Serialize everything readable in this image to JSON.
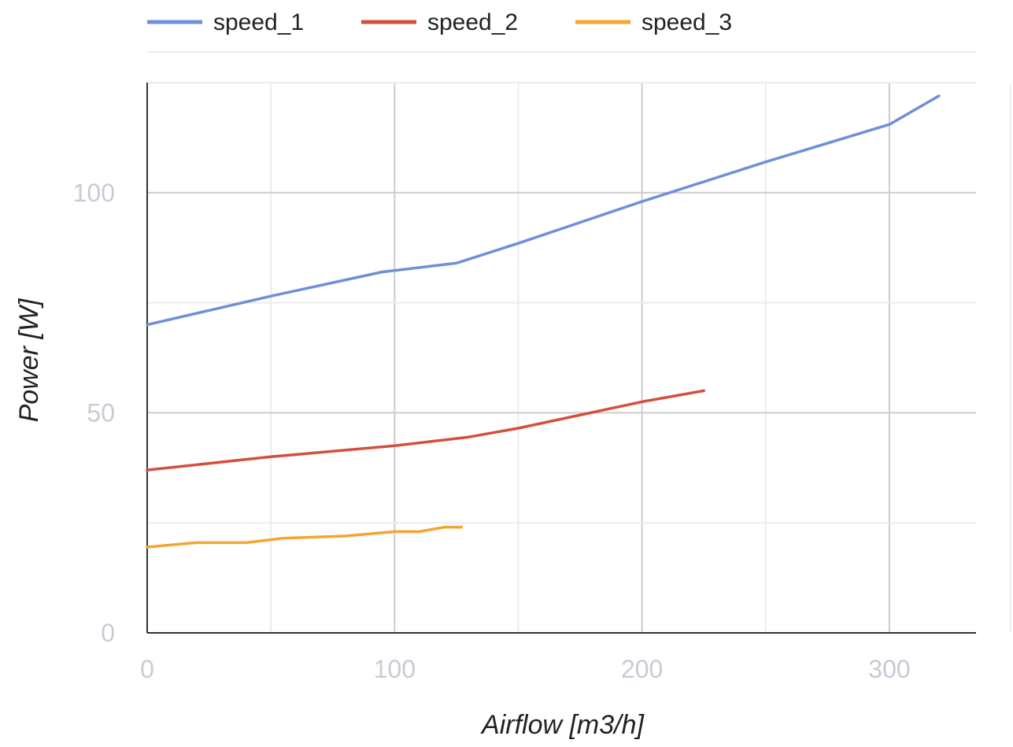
{
  "chart_data": {
    "type": "line",
    "title": "",
    "xlabel": "Airflow [m3/h]",
    "ylabel": "Power [W]",
    "xlim": [
      0,
      335
    ],
    "ylim": [
      0,
      125
    ],
    "x_ticks": [
      0,
      100,
      200,
      300
    ],
    "x_tick_labels": [
      "0",
      "100",
      "200",
      "300"
    ],
    "y_ticks": [
      0,
      50,
      100
    ],
    "y_tick_labels": [
      "0",
      "50",
      "100"
    ],
    "minor_x_gridlines": [
      50,
      150,
      250
    ],
    "minor_y_gridlines": [
      25,
      75,
      125
    ],
    "grid": true,
    "legend_position": "top-left",
    "series": [
      {
        "name": "speed_1",
        "color": "#6f8fd8",
        "points": [
          [
            0,
            70
          ],
          [
            50,
            76.5
          ],
          [
            95,
            82
          ],
          [
            125,
            84
          ],
          [
            150,
            88.5
          ],
          [
            200,
            98
          ],
          [
            250,
            107
          ],
          [
            300,
            115.5
          ],
          [
            320,
            122
          ]
        ]
      },
      {
        "name": "speed_2",
        "color": "#d3503d",
        "points": [
          [
            0,
            37
          ],
          [
            50,
            40
          ],
          [
            100,
            42.5
          ],
          [
            130,
            44.5
          ],
          [
            150,
            46.5
          ],
          [
            200,
            52.5
          ],
          [
            225,
            55
          ]
        ]
      },
      {
        "name": "speed_3",
        "color": "#f3a532",
        "points": [
          [
            0,
            19.5
          ],
          [
            20,
            20.5
          ],
          [
            40,
            20.5
          ],
          [
            55,
            21.5
          ],
          [
            80,
            22
          ],
          [
            100,
            23
          ],
          [
            110,
            23
          ],
          [
            120,
            24
          ],
          [
            127,
            24
          ]
        ]
      }
    ]
  }
}
